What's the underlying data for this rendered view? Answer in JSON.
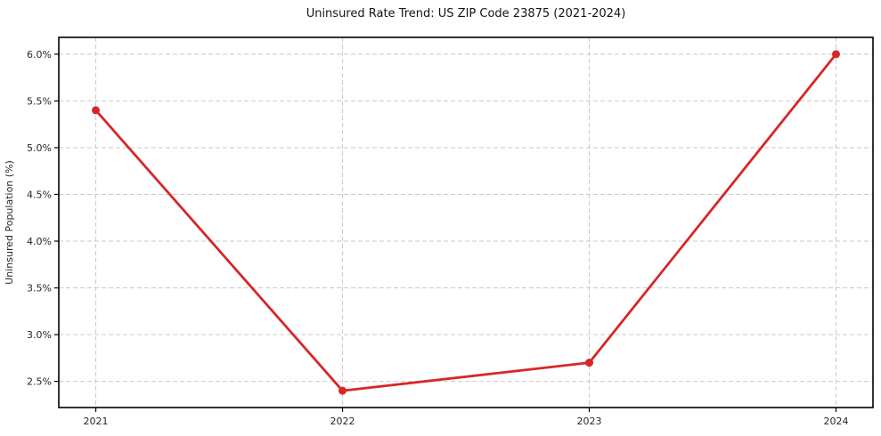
{
  "chart_data": {
    "type": "line",
    "title": "Uninsured Rate Trend: US ZIP Code 23875 (2021-2024)",
    "xlabel": "",
    "ylabel": "Uninsured Population (%)",
    "categories": [
      "2021",
      "2022",
      "2023",
      "2024"
    ],
    "series": [
      {
        "name": "Uninsured rate",
        "values": [
          5.4,
          2.4,
          2.7,
          6.0
        ],
        "color": "#d62728",
        "marker": "circle"
      }
    ],
    "ytick_values": [
      2.5,
      3.0,
      3.5,
      4.0,
      4.5,
      5.0,
      5.5,
      6.0
    ],
    "ytick_labels": [
      "2.5%",
      "3.0%",
      "3.5%",
      "4.0%",
      "4.5%",
      "5.0%",
      "5.5%",
      "6.0%"
    ],
    "ylim": [
      2.22,
      6.18
    ],
    "grid": true,
    "grid_style": "dashed",
    "legend_position": "none",
    "colors": {
      "line": "#d62728",
      "grid": "#c9c9c9",
      "axis": "#000000",
      "text": "#262626",
      "background": "#ffffff"
    }
  }
}
